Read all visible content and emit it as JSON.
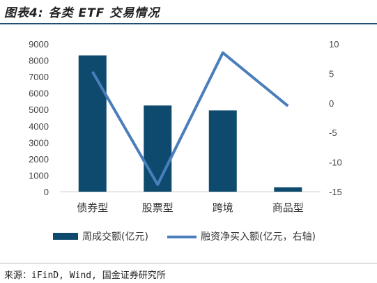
{
  "header": {
    "title": "图表4: 各类 ETF 交易情况"
  },
  "chart_data": {
    "type": "bar",
    "categories": [
      "债券型",
      "股票型",
      "跨境",
      "商品型"
    ],
    "series": [
      {
        "name": "周成交额(亿元)",
        "type": "bar",
        "axis": "left",
        "values": [
          8300,
          5250,
          4950,
          270
        ],
        "color": "#0d4a6e"
      },
      {
        "name": "融资净买入额(亿元，右轴)",
        "type": "line",
        "axis": "right",
        "values": [
          5.3,
          -13.8,
          8.5,
          -0.5
        ],
        "color": "#4a7ebb"
      }
    ],
    "y_left": {
      "min": 0,
      "max": 9000,
      "ticks": [
        "9000",
        "8000",
        "7000",
        "6000",
        "5000",
        "4000",
        "3000",
        "2000",
        "1000",
        "0"
      ]
    },
    "y_right": {
      "min": -15,
      "max": 10,
      "ticks": [
        "10",
        "5",
        "0",
        "-5",
        "-10",
        "-15"
      ]
    },
    "legend_position": "bottom",
    "grid": false
  },
  "footer": {
    "source": "来源：iFinD, Wind, 国金证券研究所"
  }
}
